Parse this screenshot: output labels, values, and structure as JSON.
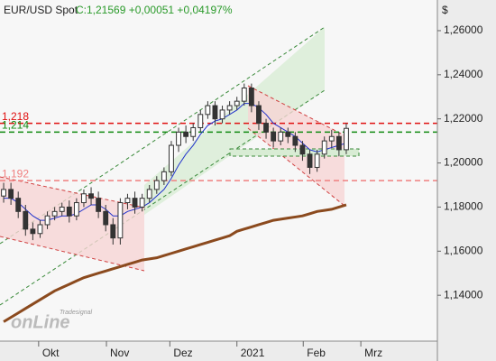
{
  "chart_data": {
    "type": "candlestick",
    "title": "EUR/USD Spot",
    "quote": "C:1,21569 +0,00051 +0,04197%",
    "currency": "$",
    "logo": [
      "Tradesignal",
      "onLine"
    ],
    "ylim": [
      1.1192,
      1.2739
    ],
    "yticks": [
      {
        "value": 1.14,
        "label": "1,14000"
      },
      {
        "value": 1.16,
        "label": "1,16000"
      },
      {
        "value": 1.18,
        "label": "1,18000"
      },
      {
        "value": 1.2,
        "label": "1,20000"
      },
      {
        "value": 1.22,
        "label": "1,22000"
      },
      {
        "value": 1.24,
        "label": "1,24000"
      },
      {
        "value": 1.26,
        "label": "1,26000"
      }
    ],
    "xlim": [
      -0.5,
      59.5
    ],
    "xticks": [
      {
        "value": 4.8,
        "label": "Okt"
      },
      {
        "value": 14.1,
        "label": "Nov"
      },
      {
        "value": 22.8,
        "label": "Dez"
      },
      {
        "value": 32.0,
        "label": "2021"
      },
      {
        "value": 41.1,
        "label": "Feb"
      },
      {
        "value": 49.0,
        "label": "Mrz"
      }
    ],
    "open": [
      1.185,
      1.188,
      1.184,
      1.178,
      1.17,
      1.168,
      1.172,
      1.176,
      1.178,
      1.18,
      1.176,
      1.182,
      1.186,
      1.184,
      1.178,
      1.172,
      1.166,
      1.182,
      1.184,
      1.18,
      1.184,
      1.188,
      1.192,
      1.196,
      1.208,
      1.214,
      1.212,
      1.216,
      1.222,
      1.226,
      1.22,
      1.224,
      1.226,
      1.228,
      1.234,
      1.226,
      1.218,
      1.214,
      1.21,
      1.214,
      1.212,
      1.208,
      1.204,
      1.198,
      1.204,
      1.21,
      1.212,
      1.206
    ],
    "high": [
      1.191,
      1.191,
      1.187,
      1.181,
      1.173,
      1.174,
      1.178,
      1.18,
      1.182,
      1.183,
      1.184,
      1.188,
      1.189,
      1.187,
      1.181,
      1.175,
      1.184,
      1.186,
      1.187,
      1.186,
      1.19,
      1.194,
      1.198,
      1.21,
      1.216,
      1.217,
      1.218,
      1.224,
      1.228,
      1.228,
      1.226,
      1.228,
      1.23,
      1.236,
      1.236,
      1.228,
      1.22,
      1.216,
      1.216,
      1.216,
      1.214,
      1.21,
      1.206,
      1.206,
      1.212,
      1.215,
      1.214,
      1.218
    ],
    "low": [
      1.182,
      1.181,
      1.175,
      1.167,
      1.165,
      1.166,
      1.17,
      1.174,
      1.176,
      1.173,
      1.174,
      1.18,
      1.181,
      1.175,
      1.169,
      1.163,
      1.163,
      1.179,
      1.177,
      1.178,
      1.182,
      1.186,
      1.19,
      1.194,
      1.205,
      1.209,
      1.21,
      1.214,
      1.22,
      1.217,
      1.218,
      1.222,
      1.224,
      1.226,
      1.223,
      1.215,
      1.211,
      1.207,
      1.208,
      1.209,
      1.205,
      1.201,
      1.195,
      1.196,
      1.202,
      1.207,
      1.203,
      1.204
    ],
    "close": [
      1.188,
      1.184,
      1.178,
      1.17,
      1.168,
      1.172,
      1.176,
      1.178,
      1.18,
      1.176,
      1.182,
      1.186,
      1.184,
      1.178,
      1.172,
      1.166,
      1.182,
      1.184,
      1.18,
      1.184,
      1.188,
      1.192,
      1.196,
      1.208,
      1.214,
      1.212,
      1.216,
      1.222,
      1.226,
      1.22,
      1.224,
      1.226,
      1.228,
      1.234,
      1.226,
      1.218,
      1.214,
      1.21,
      1.214,
      1.212,
      1.208,
      1.204,
      1.198,
      1.204,
      1.21,
      1.212,
      1.206,
      1.21569
    ],
    "overlays": [
      {
        "color": "#2233cc",
        "values": [
          1.184,
          1.184,
          1.182,
          1.179,
          1.176,
          1.174,
          1.174,
          1.175,
          1.176,
          1.176,
          1.177,
          1.179,
          1.181,
          1.181,
          1.179,
          1.176,
          1.176,
          1.178,
          1.179,
          1.18,
          1.182,
          1.185,
          1.188,
          1.193,
          1.199,
          1.204,
          1.208,
          1.213,
          1.217,
          1.219,
          1.22,
          1.222,
          1.224,
          1.227,
          1.227,
          1.225,
          1.222,
          1.218,
          1.216,
          1.214,
          1.212,
          1.209,
          1.206,
          1.205,
          1.206,
          1.207,
          1.208,
          1.209
        ]
      },
      {
        "color": "#8b4a1e",
        "values": [
          1.128,
          1.13,
          1.132,
          1.134,
          1.136,
          1.138,
          1.14,
          1.142,
          1.1435,
          1.145,
          1.1465,
          1.148,
          1.149,
          1.15,
          1.151,
          1.152,
          1.153,
          1.154,
          1.155,
          1.156,
          1.1565,
          1.157,
          1.158,
          1.159,
          1.16,
          1.161,
          1.162,
          1.163,
          1.164,
          1.165,
          1.166,
          1.167,
          1.169,
          1.17,
          1.171,
          1.172,
          1.173,
          1.174,
          1.1745,
          1.175,
          1.1755,
          1.176,
          1.177,
          1.178,
          1.1785,
          1.179,
          1.18,
          1.181
        ]
      }
    ],
    "levels": [
      {
        "value": 1.218,
        "label": "1,218",
        "color": "#e01010"
      },
      {
        "value": 1.214,
        "label": "1,214",
        "color": "#108a10"
      },
      {
        "value": 1.192,
        "label": "1,192",
        "color": "#f08080"
      }
    ]
  }
}
